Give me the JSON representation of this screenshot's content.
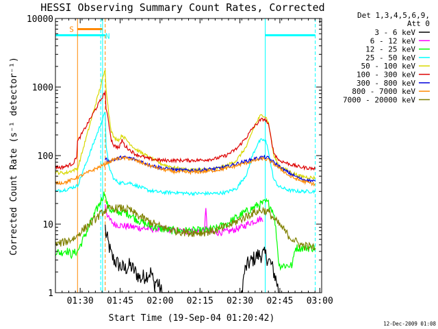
{
  "chart_data": {
    "type": "line",
    "title": "HESSI Observing Summary Count Rates, Corrected",
    "xlabel": "Start Time (19-Sep-04 01:20:42)",
    "ylabel": "Corrected Count Rate (s⁻¹ detector⁻¹)",
    "y_scale": "log",
    "ylim": [
      1,
      10000
    ],
    "xlim_minutes": [
      0,
      100
    ],
    "x_ticks": [
      {
        "label": "01:30",
        "minute": 9.3
      },
      {
        "label": "01:45",
        "minute": 24.3
      },
      {
        "label": "02:00",
        "minute": 39.3
      },
      {
        "label": "02:15",
        "minute": 54.3
      },
      {
        "label": "02:30",
        "minute": 69.3
      },
      {
        "label": "02:45",
        "minute": 84.3
      },
      {
        "label": "03:00",
        "minute": 99.3
      }
    ],
    "y_ticks": [
      {
        "label": "1",
        "value": 1
      },
      {
        "label": "10",
        "value": 10
      },
      {
        "label": "100",
        "value": 100
      },
      {
        "label": "1000",
        "value": 1000
      },
      {
        "label": "10000",
        "value": 10000
      }
    ],
    "legend_header": [
      "Det 1,3,4,5,6,9,",
      "Att 0"
    ],
    "legend_position": "right",
    "annotations": {
      "saa_label": "S",
      "night_label": "N",
      "night_bars": [
        [
          0,
          18.7
        ],
        [
          78.8,
          97.6
        ]
      ],
      "night_bar_value": 5700,
      "saa_bar": [
        8.3,
        17.7
      ],
      "saa_bar_value": 7000,
      "cyan_vlines": [
        0,
        17.7,
        78.8
      ],
      "cyan_dashed_vlines": [
        17.0,
        97.6
      ],
      "orange_vline": 8.3,
      "orange_dashed_vline": 18.7
    },
    "series": [
      {
        "name": "3 - 6 keV",
        "color": "#000000",
        "points": [
          [
            18.7,
            9
          ],
          [
            19,
            7
          ],
          [
            20,
            5
          ],
          [
            21,
            3.5
          ],
          [
            22,
            3
          ],
          [
            24,
            2.5
          ],
          [
            26,
            2.2
          ],
          [
            28,
            2.5
          ],
          [
            30,
            2
          ],
          [
            32,
            1.6
          ],
          [
            34,
            1.8
          ],
          [
            36,
            2
          ],
          [
            37,
            1.3
          ],
          [
            38,
            1.5
          ],
          [
            40,
            1
          ],
          [
            70,
            1
          ],
          [
            71,
            2
          ],
          [
            72,
            2.5
          ],
          [
            74,
            3
          ],
          [
            76,
            3.5
          ],
          [
            78,
            3.6
          ],
          [
            79,
            3.5
          ],
          [
            80,
            3
          ],
          [
            81,
            2.6
          ],
          [
            82,
            2
          ],
          [
            83,
            1.5
          ],
          [
            84,
            1
          ],
          [
            97.6,
            1
          ]
        ]
      },
      {
        "name": "6 - 12 keV",
        "color": "#ff00ff",
        "points": [
          [
            18.7,
            20
          ],
          [
            19,
            16
          ],
          [
            20,
            12
          ],
          [
            22,
            10
          ],
          [
            25,
            9.5
          ],
          [
            30,
            9
          ],
          [
            35,
            8.5
          ],
          [
            40,
            8.5
          ],
          [
            45,
            8
          ],
          [
            50,
            7.8
          ],
          [
            55,
            8
          ],
          [
            56,
            8.2
          ],
          [
            56.5,
            16
          ],
          [
            57,
            8
          ],
          [
            60,
            7.5
          ],
          [
            65,
            7.8
          ],
          [
            70,
            9
          ],
          [
            73,
            10.5
          ],
          [
            76,
            11.5
          ],
          [
            77,
            12
          ],
          [
            78,
            11
          ]
        ]
      },
      {
        "name": "12 - 25 keV",
        "color": "#00ff00",
        "points": [
          [
            0,
            4
          ],
          [
            2,
            3.8
          ],
          [
            4,
            4.2
          ],
          [
            6,
            3.6
          ],
          [
            8,
            4
          ],
          [
            8.3,
            4
          ],
          [
            18.7,
            30
          ],
          [
            19,
            22
          ],
          [
            20,
            17
          ],
          [
            22,
            15
          ],
          [
            25,
            15
          ],
          [
            28,
            14
          ],
          [
            30,
            12
          ],
          [
            35,
            9.5
          ],
          [
            40,
            8.5
          ],
          [
            45,
            8
          ],
          [
            50,
            8
          ],
          [
            55,
            8
          ],
          [
            60,
            8.5
          ],
          [
            65,
            10.5
          ],
          [
            70,
            14
          ],
          [
            74,
            17
          ],
          [
            76,
            19
          ],
          [
            78,
            20
          ],
          [
            79,
            21
          ],
          [
            80,
            20
          ],
          [
            82,
            15
          ],
          [
            83,
            7
          ],
          [
            84,
            2.5
          ],
          [
            89,
            2.5
          ],
          [
            90,
            4.5
          ],
          [
            97.6,
            4.5
          ]
        ]
      },
      {
        "name": "25 - 50 keV",
        "color": "#00ffff",
        "points": [
          [
            0,
            30
          ],
          [
            2,
            31
          ],
          [
            4,
            32
          ],
          [
            6,
            34
          ],
          [
            8,
            36
          ],
          [
            8.3,
            36
          ],
          [
            18.7,
            430
          ],
          [
            19,
            150
          ],
          [
            20,
            70
          ],
          [
            22,
            45
          ],
          [
            24,
            40
          ],
          [
            26,
            40
          ],
          [
            28,
            40
          ],
          [
            30,
            37
          ],
          [
            35,
            31
          ],
          [
            40,
            29
          ],
          [
            45,
            29
          ],
          [
            50,
            28
          ],
          [
            55,
            28
          ],
          [
            60,
            28
          ],
          [
            64,
            29
          ],
          [
            68,
            33
          ],
          [
            72,
            55
          ],
          [
            74,
            100
          ],
          [
            76,
            150
          ],
          [
            77,
            165
          ],
          [
            78,
            170
          ],
          [
            79,
            160
          ],
          [
            80,
            120
          ],
          [
            81,
            70
          ],
          [
            82,
            45
          ],
          [
            84,
            35
          ],
          [
            88,
            31
          ],
          [
            92,
            30
          ],
          [
            97.6,
            30
          ]
        ]
      },
      {
        "name": "50 - 100 keV",
        "color": "#d8d800",
        "points": [
          [
            0,
            57
          ],
          [
            2,
            56
          ],
          [
            4,
            56
          ],
          [
            6,
            60
          ],
          [
            8,
            64
          ],
          [
            8.3,
            64
          ],
          [
            18.7,
            1800
          ],
          [
            19,
            1000
          ],
          [
            20,
            420
          ],
          [
            21,
            230
          ],
          [
            22,
            180
          ],
          [
            24,
            170
          ],
          [
            25,
            200
          ],
          [
            26,
            180
          ],
          [
            28,
            150
          ],
          [
            30,
            125
          ],
          [
            35,
            95
          ],
          [
            40,
            75
          ],
          [
            45,
            66
          ],
          [
            50,
            62
          ],
          [
            55,
            62
          ],
          [
            60,
            64
          ],
          [
            64,
            70
          ],
          [
            68,
            85
          ],
          [
            72,
            140
          ],
          [
            74,
            230
          ],
          [
            76,
            330
          ],
          [
            77,
            380
          ],
          [
            78,
            390
          ],
          [
            79,
            370
          ],
          [
            80,
            300
          ],
          [
            81,
            180
          ],
          [
            82,
            100
          ],
          [
            84,
            70
          ],
          [
            88,
            58
          ],
          [
            92,
            50
          ],
          [
            97.6,
            47
          ]
        ]
      },
      {
        "name": "100 - 300 keV",
        "color": "#dd0000",
        "points": [
          [
            0,
            68
          ],
          [
            2,
            67
          ],
          [
            4,
            70
          ],
          [
            6,
            75
          ],
          [
            7,
            80
          ],
          [
            8,
            100
          ],
          [
            8.3,
            160
          ],
          [
            18.7,
            850
          ],
          [
            19,
            500
          ],
          [
            20,
            300
          ],
          [
            21,
            170
          ],
          [
            22,
            140
          ],
          [
            24,
            130
          ],
          [
            25,
            170
          ],
          [
            26,
            140
          ],
          [
            28,
            120
          ],
          [
            30,
            105
          ],
          [
            35,
            90
          ],
          [
            40,
            85
          ],
          [
            45,
            85
          ],
          [
            50,
            85
          ],
          [
            55,
            86
          ],
          [
            60,
            90
          ],
          [
            64,
            100
          ],
          [
            68,
            125
          ],
          [
            72,
            190
          ],
          [
            74,
            250
          ],
          [
            76,
            300
          ],
          [
            77,
            330
          ],
          [
            78,
            340
          ],
          [
            79,
            330
          ],
          [
            80,
            280
          ],
          [
            81,
            180
          ],
          [
            82,
            110
          ],
          [
            84,
            85
          ],
          [
            88,
            75
          ],
          [
            92,
            68
          ],
          [
            97.6,
            64
          ]
        ]
      },
      {
        "name": "300 - 800 keV",
        "color": "#0000dd",
        "points": [
          [
            18.7,
            90
          ],
          [
            20,
            82
          ],
          [
            22,
            87
          ],
          [
            25,
            95
          ],
          [
            28,
            92
          ],
          [
            30,
            88
          ],
          [
            35,
            74
          ],
          [
            40,
            66
          ],
          [
            45,
            62
          ],
          [
            50,
            61
          ],
          [
            55,
            62
          ],
          [
            60,
            64
          ],
          [
            65,
            70
          ],
          [
            70,
            80
          ],
          [
            75,
            90
          ],
          [
            78,
            95
          ],
          [
            80,
            92
          ],
          [
            82,
            80
          ],
          [
            85,
            65
          ],
          [
            88,
            55
          ],
          [
            92,
            46
          ],
          [
            97.6,
            42
          ]
        ]
      },
      {
        "name": "800 - 7000 keV",
        "color": "#ff8800",
        "points": [
          [
            0,
            40
          ],
          [
            2,
            40
          ],
          [
            4,
            41
          ],
          [
            6,
            44
          ],
          [
            8,
            48
          ],
          [
            8.3,
            48
          ],
          [
            18.7,
            75
          ],
          [
            20,
            80
          ],
          [
            22,
            88
          ],
          [
            25,
            92
          ],
          [
            28,
            90
          ],
          [
            30,
            85
          ],
          [
            35,
            72
          ],
          [
            40,
            63
          ],
          [
            45,
            58
          ],
          [
            50,
            57
          ],
          [
            55,
            58
          ],
          [
            60,
            61
          ],
          [
            65,
            66
          ],
          [
            70,
            75
          ],
          [
            75,
            85
          ],
          [
            78,
            90
          ],
          [
            80,
            86
          ],
          [
            82,
            76
          ],
          [
            85,
            62
          ],
          [
            88,
            50
          ],
          [
            92,
            43
          ],
          [
            97.6,
            38
          ]
        ]
      },
      {
        "name": "7000 - 20000 keV",
        "color": "#808000",
        "points": [
          [
            0,
            5
          ],
          [
            2,
            5.3
          ],
          [
            4,
            5.6
          ],
          [
            6,
            6
          ],
          [
            8,
            6.5
          ],
          [
            8.3,
            7
          ],
          [
            18.7,
            16
          ],
          [
            20,
            16.5
          ],
          [
            22,
            17
          ],
          [
            25,
            17
          ],
          [
            28,
            16
          ],
          [
            30,
            14
          ],
          [
            35,
            11
          ],
          [
            40,
            9
          ],
          [
            45,
            8
          ],
          [
            50,
            7.5
          ],
          [
            55,
            7.5
          ],
          [
            60,
            8
          ],
          [
            65,
            9.5
          ],
          [
            70,
            12
          ],
          [
            75,
            15
          ],
          [
            78,
            16
          ],
          [
            80,
            15
          ],
          [
            82,
            12
          ],
          [
            85,
            9
          ],
          [
            88,
            6.5
          ],
          [
            92,
            5
          ],
          [
            97.6,
            4.5
          ]
        ]
      }
    ],
    "footer": "12-Dec-2009 01:08"
  }
}
